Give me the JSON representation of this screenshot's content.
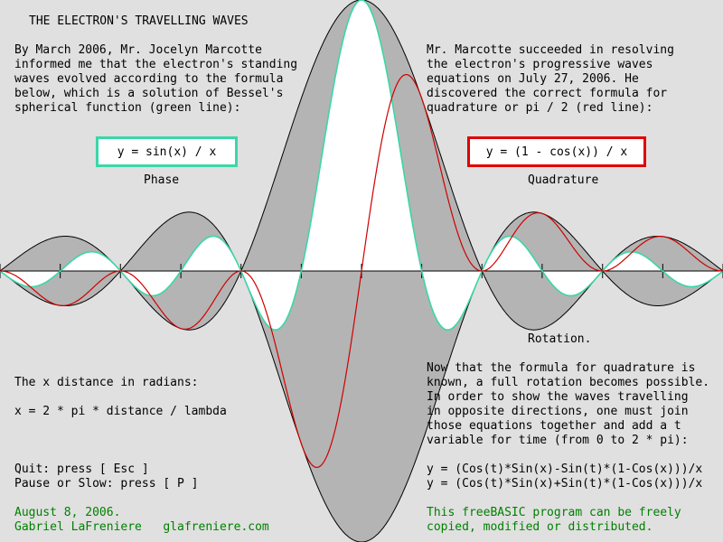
{
  "title": "THE ELECTRON'S TRAVELLING WAVES",
  "left_intro": [
    "By March 2006, Mr. Jocelyn Marcotte",
    "informed me that the electron's standing",
    "waves evolved according to the formula",
    "below, which is a solution of Bessel's",
    "spherical function (green line):"
  ],
  "right_intro": [
    "Mr. Marcotte succeeded in resolving",
    "the electron's progressive waves",
    "equations on July 27, 2006. He",
    "discovered the correct formula for",
    "quadrature or pi / 2 (red line):"
  ],
  "formula_phase": "y = sin(x) / x",
  "formula_quadrature": "y = (1 - cos(x)) / x",
  "label_phase": "Phase",
  "label_quadrature": "Quadrature",
  "label_rotation": "Rotation.",
  "distance_heading": "The x distance in radians:",
  "distance_formula": "x = 2 * pi * distance / lambda",
  "rotation_text": [
    "Now that the formula for quadrature is",
    "known, a full rotation becomes possible.",
    "In order to show the waves travelling",
    "in opposite directions, one must join",
    "those equations together and add a t",
    "variable for time (from 0 to 2 * pi):"
  ],
  "rotation_eq1": "y = (Cos(t)*Sin(x)-Sin(t)*(1-Cos(x)))/x",
  "rotation_eq2": "y = (Cos(t)*Sin(x)+Sin(t)*(1-Cos(x)))/x",
  "controls": [
    "Quit: press [ Esc ]",
    "Pause or Slow: press [ P ]"
  ],
  "footer_left": [
    "August 8, 2006.",
    "Gabriel LaFreniere   glafreniere.com"
  ],
  "footer_right": [
    "This freeBASIC program can be freely",
    "copied, modified or distributed."
  ],
  "colors": {
    "background": "#e0e0e0",
    "envelope": "#b4b4b4",
    "phase": "#3ad7a8",
    "quadrature": "#d00000",
    "footer_text": "#008000"
  },
  "chart_data": {
    "type": "line",
    "xlabel": "",
    "ylabel": "",
    "xlim": [
      -18.85,
      18.85
    ],
    "ylim": [
      -1.0,
      1.0
    ],
    "x_ticks_radians": [
      -18.85,
      -15.71,
      -12.57,
      -9.42,
      -6.28,
      -3.14,
      0,
      3.14,
      6.28,
      9.42,
      12.57,
      15.71,
      18.85
    ],
    "series": [
      {
        "formula": "sin(x)/x"
      },
      {
        "formula": "(1-cos(x))/x"
      },
      {
        "formula": "sqrt(2*(1-cos(x)))/x"
      }
    ]
  }
}
